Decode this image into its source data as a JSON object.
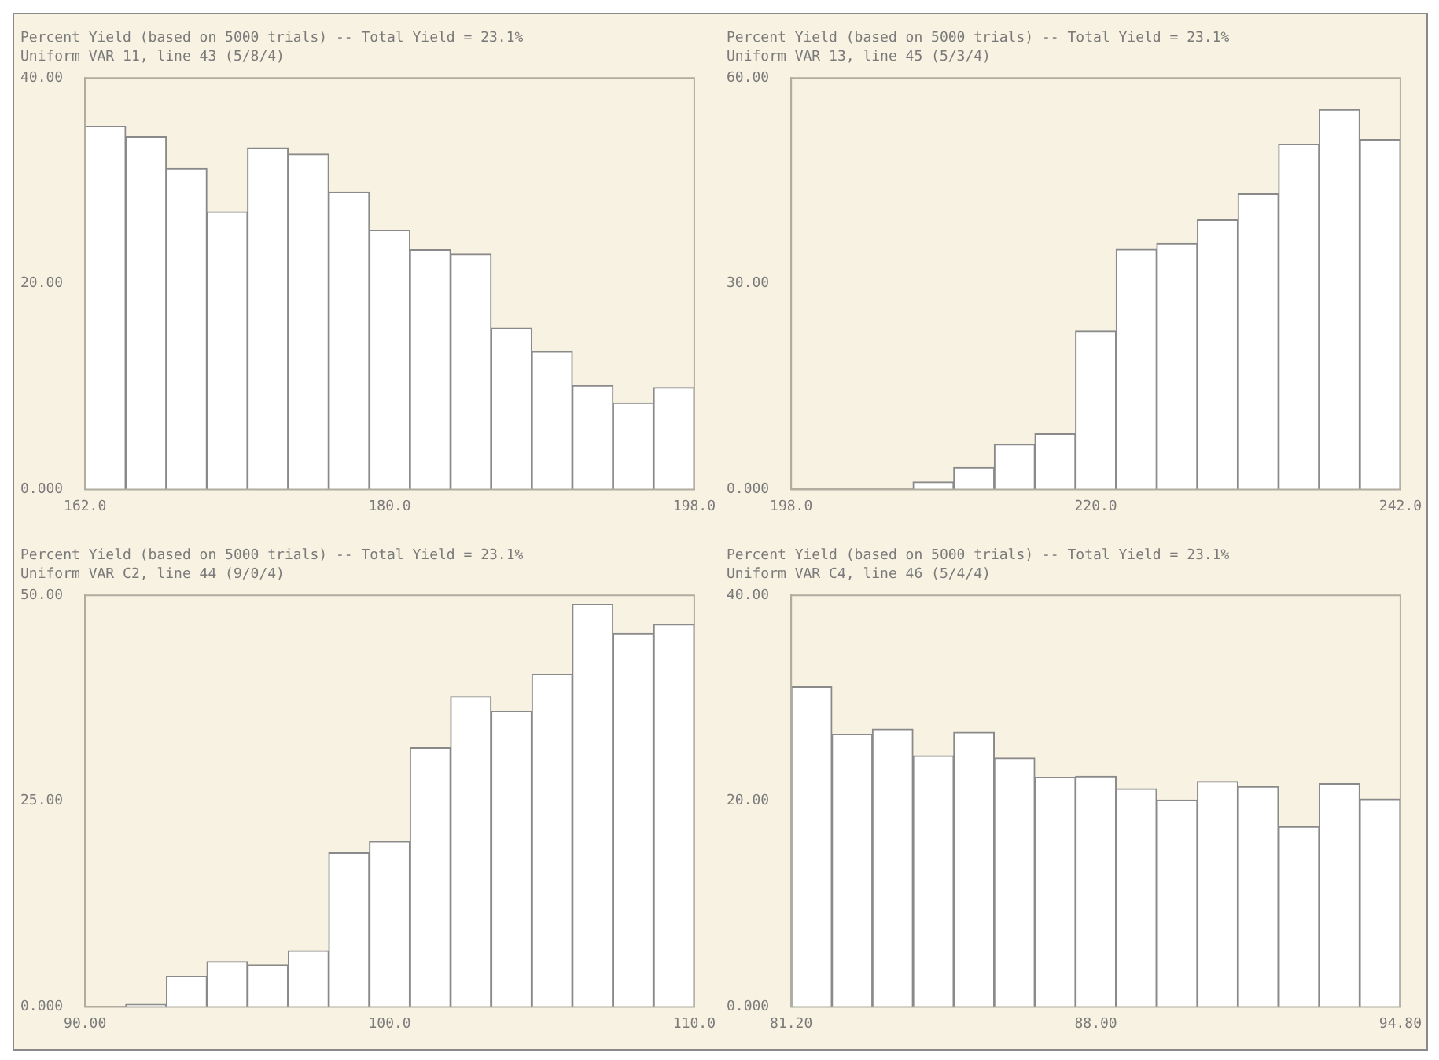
{
  "chart_data": [
    {
      "type": "histogram",
      "title": "Percent Yield (based on 5000 trials) -- Total Yield = 23.1%",
      "subtitle": "Uniform VAR 11, line 43 (5/8/4)",
      "color": "#ffffff",
      "bins": [
        162,
        164.4,
        166.8,
        169.2,
        171.6,
        174,
        176.4,
        178.8,
        181.2,
        183.6,
        186,
        188.4,
        190.8,
        193.2,
        195.6,
        198
      ],
      "values": [
        35.3,
        34.3,
        31.2,
        27.0,
        33.2,
        32.6,
        28.9,
        25.2,
        23.3,
        22.9,
        15.7,
        13.4,
        10.1,
        8.4,
        9.9
      ],
      "xlim": [
        162,
        198
      ],
      "xticks": [
        {
          "value": 162,
          "label": "162.0"
        },
        {
          "value": 180,
          "label": "180.0"
        },
        {
          "value": 198,
          "label": "198.0"
        }
      ],
      "ylim": [
        0,
        40
      ],
      "yticks": [
        {
          "value": 0,
          "label": "0.000"
        },
        {
          "value": 20,
          "label": "20.00"
        },
        {
          "value": 40,
          "label": "40.00"
        }
      ],
      "grid": false,
      "legend": false
    },
    {
      "type": "histogram",
      "title": "Percent Yield (based on 5000 trials) -- Total Yield = 23.1%",
      "subtitle": "Uniform VAR 13, line 45 (5/3/4)",
      "color": "#ffffff",
      "bins": [
        198,
        200.93,
        203.87,
        206.8,
        209.73,
        212.67,
        215.6,
        218.53,
        221.47,
        224.4,
        227.33,
        230.27,
        233.2,
        236.13,
        239.07,
        242
      ],
      "values": [
        0,
        0,
        0,
        1.1,
        3.2,
        6.6,
        8.1,
        23.1,
        35.0,
        35.9,
        39.3,
        43.1,
        50.3,
        55.4,
        51.0
      ],
      "xlim": [
        198,
        242
      ],
      "xticks": [
        {
          "value": 198,
          "label": "198.0"
        },
        {
          "value": 220,
          "label": "220.0"
        },
        {
          "value": 242,
          "label": "242.0"
        }
      ],
      "ylim": [
        0,
        60
      ],
      "yticks": [
        {
          "value": 0,
          "label": "0.000"
        },
        {
          "value": 30,
          "label": "30.00"
        },
        {
          "value": 60,
          "label": "60.00"
        }
      ],
      "grid": false,
      "legend": false
    },
    {
      "type": "histogram",
      "title": "Percent Yield (based on 5000 trials) -- Total Yield = 23.1%",
      "subtitle": "Uniform VAR C2, line 44 (9/0/4)",
      "color": "#ffffff",
      "bins": [
        90,
        91.33,
        92.67,
        94,
        95.33,
        96.67,
        98,
        99.33,
        100.67,
        102,
        103.33,
        104.67,
        106,
        107.33,
        108.67,
        110
      ],
      "values": [
        0,
        0.3,
        3.7,
        5.5,
        5.1,
        6.8,
        18.7,
        20.1,
        31.5,
        37.7,
        35.9,
        40.4,
        48.9,
        45.4,
        46.5
      ],
      "xlim": [
        90,
        110
      ],
      "xticks": [
        {
          "value": 90,
          "label": "90.00"
        },
        {
          "value": 100,
          "label": "100.0"
        },
        {
          "value": 110,
          "label": "110.0"
        }
      ],
      "ylim": [
        0,
        50
      ],
      "yticks": [
        {
          "value": 0,
          "label": "0.000"
        },
        {
          "value": 25,
          "label": "25.00"
        },
        {
          "value": 50,
          "label": "50.00"
        }
      ],
      "grid": false,
      "legend": false
    },
    {
      "type": "histogram",
      "title": "Percent Yield (based on 5000 trials) -- Total Yield = 23.1%",
      "subtitle": "Uniform VAR C4, line 46 (5/4/4)",
      "color": "#ffffff",
      "bins": [
        81.2,
        82.11,
        83.01,
        83.92,
        84.83,
        85.73,
        86.64,
        87.55,
        88.45,
        89.36,
        90.27,
        91.17,
        92.08,
        92.99,
        93.89,
        94.8
      ],
      "values": [
        31.1,
        26.5,
        27.0,
        24.4,
        26.7,
        24.2,
        22.3,
        22.4,
        21.2,
        20.1,
        21.9,
        21.4,
        17.5,
        21.7,
        20.2
      ],
      "xlim": [
        81.2,
        94.8
      ],
      "xticks": [
        {
          "value": 81.2,
          "label": "81.20"
        },
        {
          "value": 88,
          "label": "88.00"
        },
        {
          "value": 94.8,
          "label": "94.80"
        }
      ],
      "ylim": [
        0,
        40
      ],
      "yticks": [
        {
          "value": 0,
          "label": "0.000"
        },
        {
          "value": 20,
          "label": "20.00"
        },
        {
          "value": 40,
          "label": "40.00"
        }
      ],
      "grid": false,
      "legend": false
    }
  ]
}
